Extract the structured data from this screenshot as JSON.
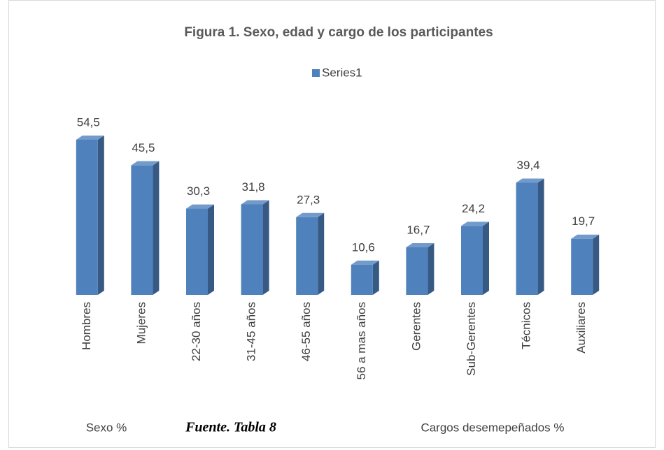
{
  "chart_data": {
    "type": "bar3d",
    "title": "Figura 1. Sexo, edad y cargo de los participantes",
    "legend": "top",
    "categories": [
      "Hombres",
      "Mujeres",
      "22-30 años",
      "31-45 años",
      "46-55 años",
      "56 a mas años",
      "Gerentes",
      "Sub-Gerentes",
      "Técnicos",
      "Auxiliares"
    ],
    "series": [
      {
        "name": "Series1",
        "color": "#4f81bd",
        "values": [
          54.5,
          45.5,
          30.3,
          31.8,
          27.3,
          10.6,
          16.7,
          24.2,
          39.4,
          19.7
        ],
        "value_labels": [
          "54,5",
          "45,5",
          "30,3",
          "31,8",
          "27,3",
          "10,6",
          "16,7",
          "24,2",
          "39,4",
          "19,7"
        ]
      }
    ],
    "annotations": [
      "Sexo %",
      "Fuente. Tabla 8",
      "Cargos desemepeñados %"
    ]
  }
}
